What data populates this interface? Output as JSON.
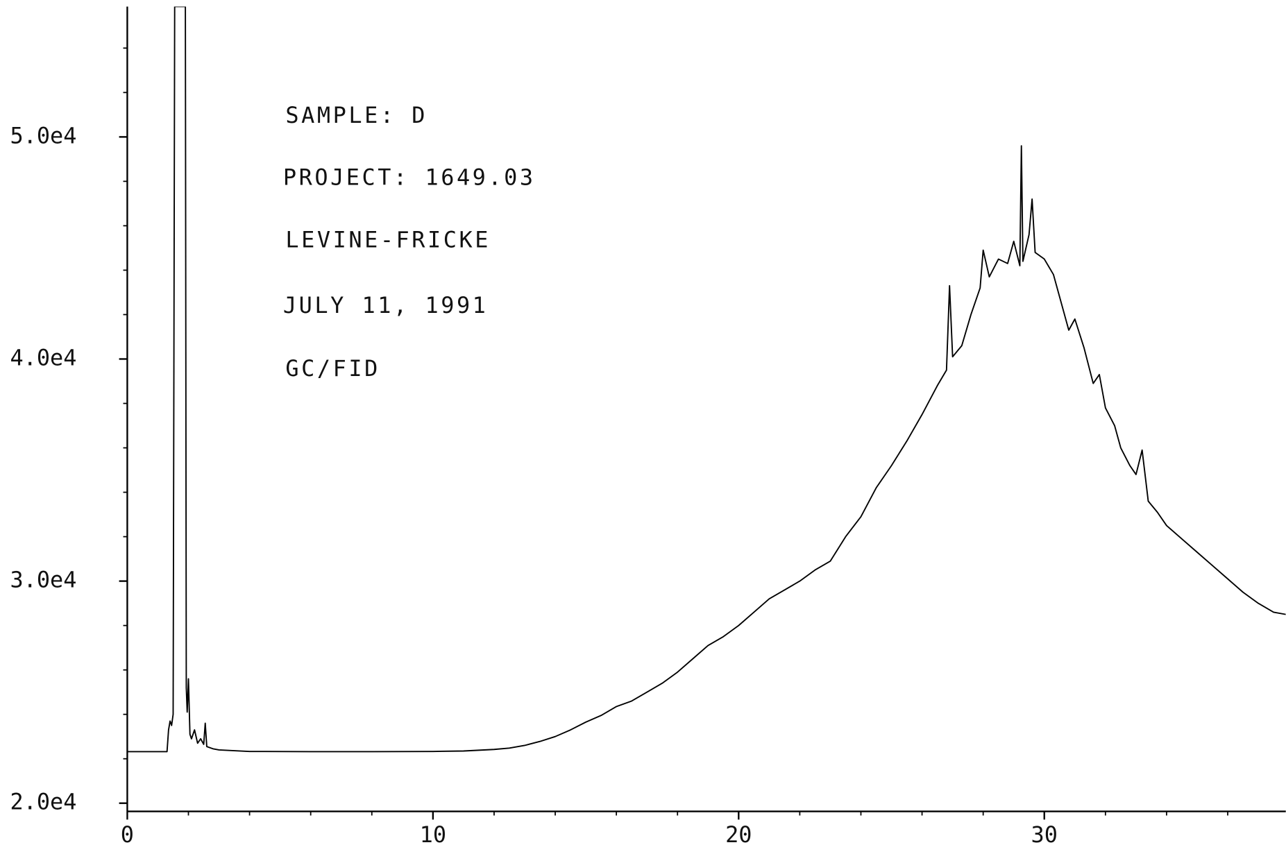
{
  "chart_data": {
    "type": "line",
    "annotations": [
      "SAMPLE: D",
      "PROJECT: 1649.03",
      "LEVINE-FRICKE",
      "JULY 11, 1991",
      "GC/FID"
    ],
    "xlim": [
      0,
      37.9
    ],
    "xticks": [
      0,
      10,
      20,
      30
    ],
    "minor_xticks": [
      2,
      4,
      6,
      8,
      12,
      14,
      16,
      18,
      22,
      24,
      26,
      28,
      32,
      34,
      36
    ],
    "ylim": [
      19630,
      55870
    ],
    "yticks": [
      {
        "value": 20000,
        "label": "2.0e4"
      },
      {
        "value": 30000,
        "label": "3.0e4"
      },
      {
        "value": 40000,
        "label": "4.0e4"
      },
      {
        "value": 50000,
        "label": "5.0e4"
      }
    ],
    "minor_yticks": [
      22000,
      24000,
      26000,
      28000,
      32000,
      34000,
      36000,
      38000,
      42000,
      44000,
      46000,
      48000,
      52000,
      54000
    ],
    "series": [
      {
        "color": "#000000",
        "x": [
          0,
          1.3,
          1.35,
          1.4,
          1.45,
          1.5,
          1.55,
          1.9,
          1.93,
          1.96,
          2.0,
          2.05,
          2.1,
          2.2,
          2.3,
          2.4,
          2.5,
          2.55,
          2.6,
          2.8,
          3,
          4,
          6,
          8,
          10,
          11,
          12,
          12.5,
          13,
          13.5,
          14,
          14.5,
          15,
          15.5,
          16,
          16.5,
          17,
          17.5,
          18,
          18.5,
          19,
          19.5,
          20,
          20.5,
          21,
          21.5,
          22,
          22.5,
          23,
          23.5,
          24,
          24.5,
          25,
          25.5,
          26,
          26.5,
          26.8,
          26.9,
          27.0,
          27.3,
          27.6,
          27.9,
          28.0,
          28.2,
          28.5,
          28.8,
          29.0,
          29.2,
          29.25,
          29.3,
          29.5,
          29.6,
          29.7,
          30.0,
          30.3,
          30.5,
          30.8,
          31.0,
          31.3,
          31.6,
          31.8,
          32.0,
          32.3,
          32.5,
          32.8,
          33.0,
          33.2,
          33.4,
          33.7,
          34,
          34.5,
          35,
          35.5,
          36,
          36.5,
          37,
          37.5,
          37.9
        ],
        "values": [
          22320,
          22320,
          23300,
          23700,
          23500,
          24000,
          55870,
          55870,
          25200,
          24100,
          25600,
          23100,
          22900,
          23300,
          22700,
          22900,
          22650,
          23600,
          22550,
          22450,
          22400,
          22330,
          22320,
          22320,
          22330,
          22350,
          22420,
          22480,
          22600,
          22780,
          23000,
          23300,
          23650,
          23950,
          24350,
          24600,
          25000,
          25400,
          25900,
          26500,
          27100,
          27500,
          28000,
          28600,
          29200,
          29600,
          30000,
          30500,
          30900,
          32000,
          32900,
          34200,
          35200,
          36300,
          37500,
          38800,
          39500,
          43300,
          40100,
          40600,
          42000,
          43200,
          44900,
          43700,
          44500,
          44300,
          45300,
          44200,
          49600,
          44400,
          45600,
          47200,
          44800,
          44500,
          43800,
          42800,
          41300,
          41800,
          40500,
          38900,
          39300,
          37800,
          37000,
          36000,
          35200,
          34800,
          35900,
          33600,
          33100,
          32500,
          31900,
          31300,
          30700,
          30100,
          29500,
          29000,
          28600,
          28500
        ]
      }
    ]
  }
}
